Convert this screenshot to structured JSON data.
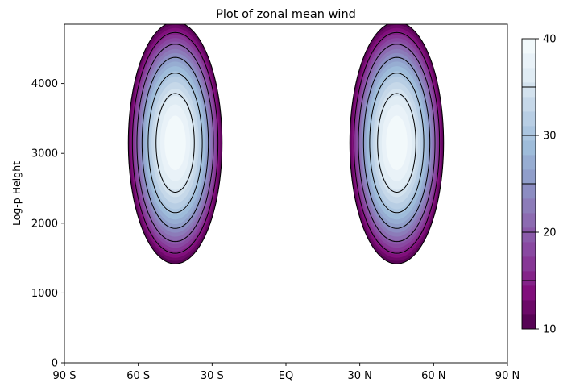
{
  "chart_data": {
    "type": "contour",
    "title": "Plot of zonal mean wind",
    "xlabel": "",
    "ylabel": "Log-p Height",
    "x_ticks": [
      {
        "value": -90,
        "label": "90 S"
      },
      {
        "value": -60,
        "label": "60 S"
      },
      {
        "value": -30,
        "label": "30 S"
      },
      {
        "value": 0,
        "label": "EQ"
      },
      {
        "value": 30,
        "label": "30 N"
      },
      {
        "value": 60,
        "label": "60 N"
      },
      {
        "value": 90,
        "label": "90 N"
      }
    ],
    "y_ticks": [
      0,
      1000,
      2000,
      3000,
      4000
    ],
    "xlim": [
      -90,
      90
    ],
    "ylim": [
      0,
      4850
    ],
    "field": {
      "jets": [
        {
          "lat": -45,
          "height": 3150,
          "peak": 40,
          "lat_width": 11,
          "height_width": 1000
        },
        {
          "lat": 45,
          "height": 3150,
          "peak": 40,
          "lat_width": 11,
          "height_width": 1000
        }
      ]
    },
    "filled_levels": [
      10,
      11.5,
      13,
      14.5,
      16,
      17.5,
      19,
      20.5,
      22,
      23.5,
      25,
      26.5,
      28,
      29.5,
      31,
      32.5,
      34,
      35.5,
      37,
      38.5,
      40
    ],
    "line_levels": [
      10,
      15,
      20,
      25,
      30,
      35
    ],
    "colormap": "BuPu",
    "colorbar": {
      "range": [
        10,
        40
      ],
      "ticks": [
        10,
        20,
        30,
        40
      ],
      "lines": [
        15,
        20,
        25,
        30,
        35
      ]
    }
  }
}
